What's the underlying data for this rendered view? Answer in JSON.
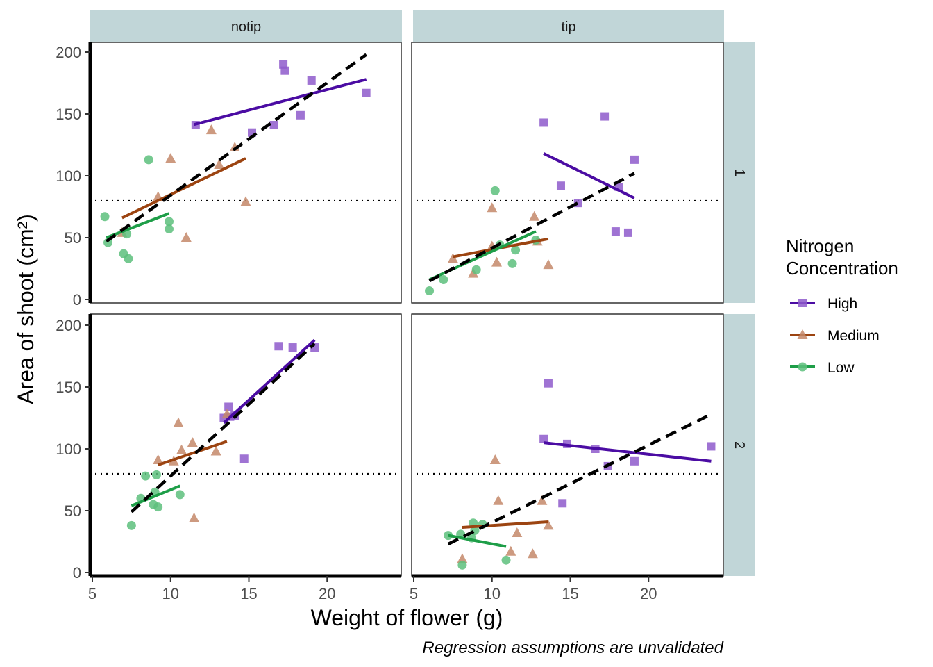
{
  "chart_data": {
    "type": "scatter",
    "caption": "Regression assumptions are unvalidated",
    "xlabel": "Weight of flower (g)",
    "ylabel": "Area of shoot (cm²)",
    "legend_title_line1": "Nitrogen",
    "legend_title_line2": "Concentration",
    "legend_position": "right",
    "grid": false,
    "col_facets": [
      "notip",
      "tip"
    ],
    "row_facets": [
      "1",
      "2"
    ],
    "xlim": [
      5,
      24.5
    ],
    "ylim": [
      0,
      205
    ],
    "x_ticks": [
      5,
      10,
      15,
      20
    ],
    "y_ticks": [
      0,
      50,
      100,
      150,
      200
    ],
    "reference_line_y": 79.8,
    "series": [
      {
        "name": "High",
        "color": "#4B0CA3",
        "point_color": "#8E5BCB",
        "marker": "square"
      },
      {
        "name": "Medium",
        "color": "#9C4411",
        "point_color": "#C4886A",
        "marker": "triangle"
      },
      {
        "name": "Low",
        "color": "#1E9E48",
        "point_color": "#5DBF7C",
        "marker": "circle"
      }
    ],
    "panels": [
      {
        "col": "notip",
        "row": "1",
        "points": {
          "High": [
            [
              11.6,
              141
            ],
            [
              17.2,
              190
            ],
            [
              17.3,
              185
            ],
            [
              19,
              177
            ],
            [
              22.5,
              167
            ],
            [
              18.3,
              149
            ],
            [
              16.6,
              141
            ],
            [
              15.2,
              135
            ]
          ],
          "Medium": [
            [
              12.6,
              137
            ],
            [
              14.1,
              123
            ],
            [
              10,
              114
            ],
            [
              9.2,
              83
            ],
            [
              14.8,
              79
            ],
            [
              11,
              50
            ],
            [
              6.9,
              54
            ],
            [
              13.1,
              109
            ]
          ],
          "Low": [
            [
              5.8,
              67
            ],
            [
              8.6,
              113
            ],
            [
              9.9,
              63
            ],
            [
              9.9,
              57
            ],
            [
              7.2,
              53
            ],
            [
              6,
              46
            ],
            [
              7,
              37
            ],
            [
              7.3,
              33
            ]
          ]
        },
        "fits": {
          "High": [
            [
              11.5,
              141.5
            ],
            [
              22.5,
              178
            ]
          ],
          "Medium": [
            [
              6.9,
              66
            ],
            [
              14.8,
              114
            ]
          ],
          "Low": [
            [
              5.9,
              50
            ],
            [
              9.9,
              69.5
            ]
          ]
        },
        "overall_fit": [
          [
            5.9,
            47
          ],
          [
            22.5,
            198
          ]
        ]
      },
      {
        "col": "tip",
        "row": "1",
        "points": {
          "High": [
            [
              13.3,
              143
            ],
            [
              17.2,
              148
            ],
            [
              19.1,
              113
            ],
            [
              14.4,
              92
            ],
            [
              15.5,
              78
            ],
            [
              18.1,
              91
            ],
            [
              17.9,
              55
            ],
            [
              18.7,
              54
            ]
          ],
          "Medium": [
            [
              10,
              74
            ],
            [
              12.7,
              67
            ],
            [
              13.6,
              28
            ],
            [
              12.9,
              47
            ],
            [
              10.3,
              30
            ],
            [
              8.8,
              21
            ],
            [
              7.5,
              33
            ],
            [
              10,
              43
            ]
          ],
          "Low": [
            [
              10.2,
              88
            ],
            [
              11.5,
              40
            ],
            [
              11.3,
              29
            ],
            [
              12.8,
              48
            ],
            [
              9,
              24
            ],
            [
              6.9,
              16
            ],
            [
              6,
              7
            ],
            [
              10.5,
              44
            ]
          ]
        },
        "fits": {
          "High": [
            [
              13.3,
              118
            ],
            [
              19.1,
              82
            ]
          ],
          "Medium": [
            [
              7.5,
              34.5
            ],
            [
              13.6,
              49
            ]
          ],
          "Low": [
            [
              6,
              16
            ],
            [
              12.8,
              55
            ]
          ]
        },
        "overall_fit": [
          [
            6,
            15
          ],
          [
            19.1,
            102
          ]
        ]
      },
      {
        "col": "notip",
        "row": "2",
        "points": {
          "High": [
            [
              16.9,
              183
            ],
            [
              17.8,
              182
            ],
            [
              19.2,
              182
            ],
            [
              13.7,
              134
            ],
            [
              13.4,
              125
            ],
            [
              14.1,
              127
            ],
            [
              14.7,
              92
            ],
            [
              13.8,
              126
            ]
          ],
          "Medium": [
            [
              10.5,
              121
            ],
            [
              10.7,
              99
            ],
            [
              11.4,
              105
            ],
            [
              12.9,
              98
            ],
            [
              9.2,
              91
            ],
            [
              10.2,
              90
            ],
            [
              11.5,
              44
            ],
            [
              13.6,
              128
            ]
          ],
          "Low": [
            [
              8.4,
              78
            ],
            [
              9.1,
              79
            ],
            [
              10.6,
              63
            ],
            [
              8.1,
              60
            ],
            [
              9,
              65
            ],
            [
              8.9,
              55
            ],
            [
              9.2,
              53
            ],
            [
              7.5,
              38
            ]
          ]
        },
        "fits": {
          "High": [
            [
              13.4,
              121
            ],
            [
              19.2,
              188
            ]
          ],
          "Medium": [
            [
              9.2,
              87
            ],
            [
              13.6,
              106
            ]
          ],
          "Low": [
            [
              7.5,
              54
            ],
            [
              10.6,
              70
            ]
          ]
        },
        "overall_fit": [
          [
            7.5,
            49
          ],
          [
            19.2,
            185
          ]
        ]
      },
      {
        "col": "tip",
        "row": "2",
        "points": {
          "High": [
            [
              13.6,
              153
            ],
            [
              13.3,
              108
            ],
            [
              14.8,
              104
            ],
            [
              16.6,
              100
            ],
            [
              17.4,
              86
            ],
            [
              19.1,
              90
            ],
            [
              24,
              102
            ],
            [
              14.5,
              56
            ]
          ],
          "Medium": [
            [
              10.2,
              91
            ],
            [
              10.4,
              58
            ],
            [
              13.2,
              58
            ],
            [
              13.6,
              38
            ],
            [
              11.6,
              32
            ],
            [
              11.2,
              17
            ],
            [
              12.6,
              15
            ],
            [
              8.1,
              11
            ]
          ],
          "Low": [
            [
              8.8,
              40
            ],
            [
              9.4,
              39
            ],
            [
              8.9,
              34
            ],
            [
              8,
              31
            ],
            [
              7.2,
              30
            ],
            [
              8.7,
              28
            ],
            [
              10.9,
              10
            ],
            [
              8.1,
              6
            ]
          ]
        },
        "fits": {
          "High": [
            [
              13.3,
              105
            ],
            [
              24,
              90
            ]
          ],
          "Medium": [
            [
              8.1,
              36.5
            ],
            [
              13.6,
              41
            ]
          ],
          "Low": [
            [
              7.2,
              30
            ],
            [
              10.9,
              21
            ]
          ]
        },
        "overall_fit": [
          [
            7.2,
            23
          ],
          [
            24,
            128
          ]
        ]
      }
    ]
  }
}
